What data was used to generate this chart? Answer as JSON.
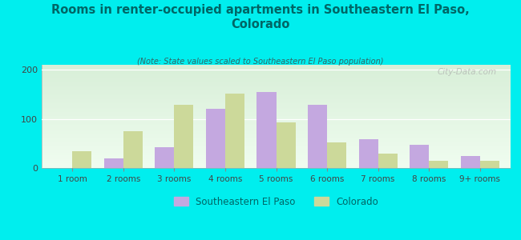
{
  "title": "Rooms in renter-occupied apartments in Southeastern El Paso,\nColorado",
  "subtitle": "(Note: State values scaled to Southeastern El Paso population)",
  "categories": [
    "1 room",
    "2 rooms",
    "3 rooms",
    "4 rooms",
    "5 rooms",
    "6 rooms",
    "7 rooms",
    "8 rooms",
    "9+ rooms"
  ],
  "southeastern_values": [
    0,
    20,
    42,
    120,
    155,
    128,
    58,
    48,
    25
  ],
  "colorado_values": [
    35,
    75,
    128,
    152,
    93,
    52,
    30,
    15,
    15
  ],
  "se_color": "#c4a8e0",
  "co_color": "#ccd99a",
  "background_outer": "#00eeee",
  "title_color": "#006666",
  "subtitle_color": "#336666",
  "watermark": "City-Data.com",
  "ylim": [
    0,
    210
  ],
  "yticks": [
    0,
    100,
    200
  ],
  "bar_width": 0.38,
  "legend_se_label": "Southeastern El Paso",
  "legend_co_label": "Colorado",
  "grad_top": "#d8efd8",
  "grad_bottom": "#f0fdf0"
}
